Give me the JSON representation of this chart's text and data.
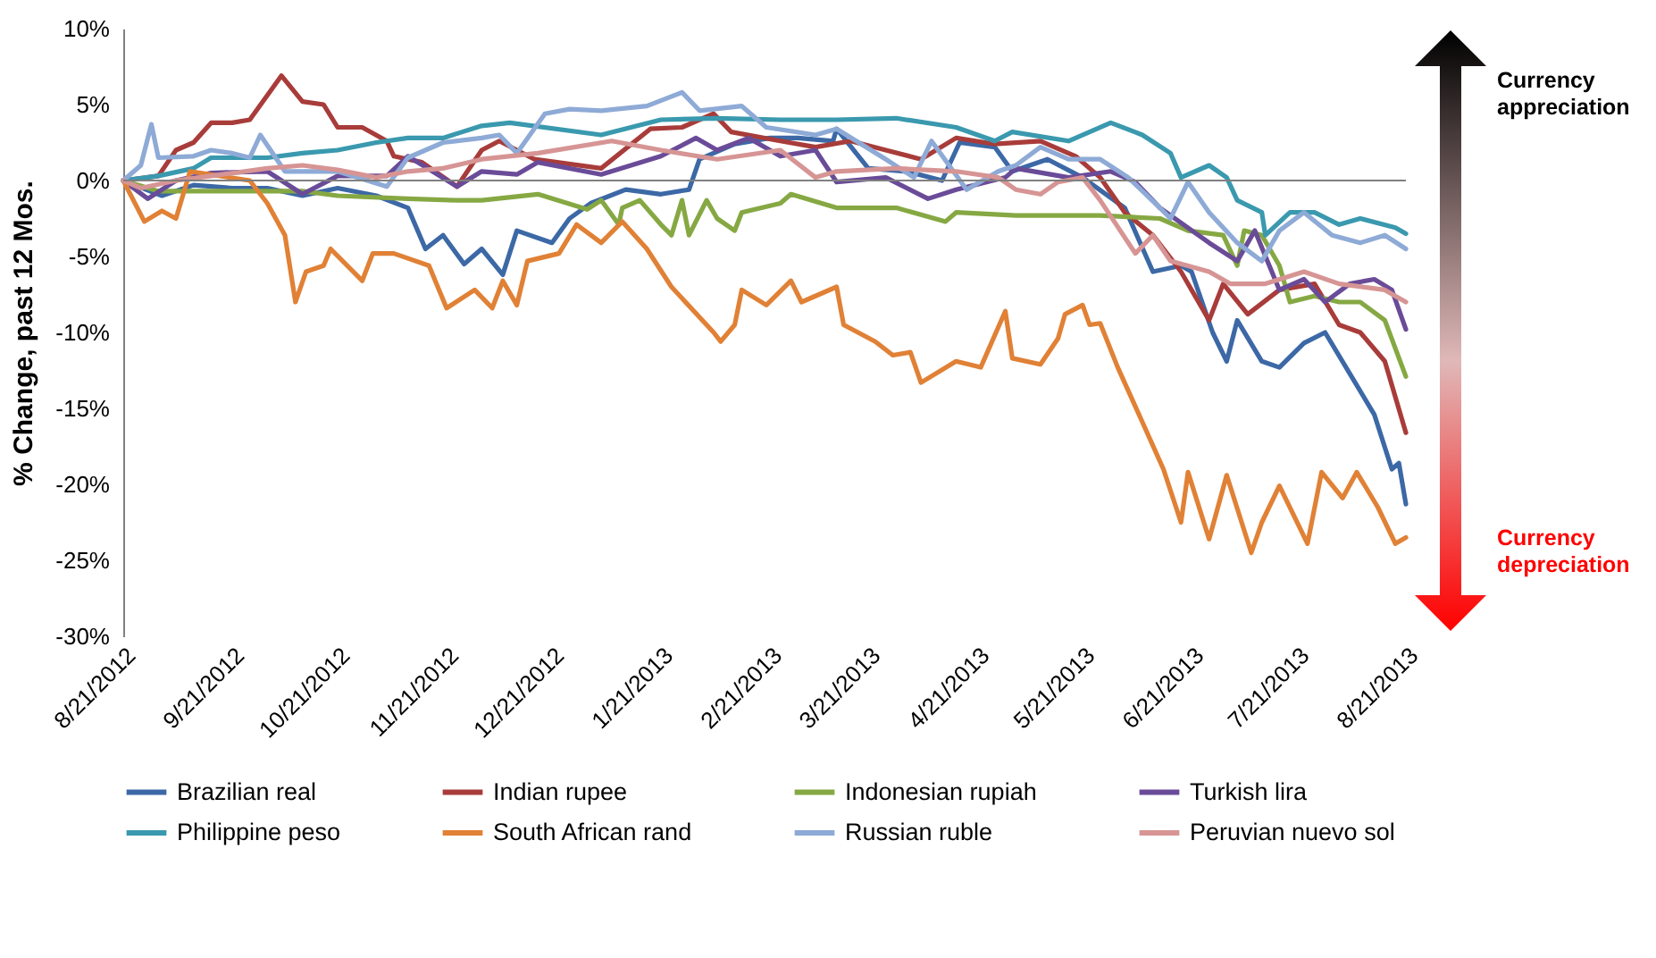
{
  "chart_data": {
    "type": "line",
    "ylabel": "% Change, past 12 Mos.",
    "legend": "bottom",
    "grid": false,
    "line_style": "solid",
    "xlim": [
      "2012-08-21",
      "2013-08-21"
    ],
    "xticks": [
      {
        "value": "2012-08-21",
        "label": "8/21/2012"
      },
      {
        "value": "2012-09-21",
        "label": "9/21/2012"
      },
      {
        "value": "2012-10-21",
        "label": "10/21/2012"
      },
      {
        "value": "2012-11-21",
        "label": "11/21/2012"
      },
      {
        "value": "2012-12-21",
        "label": "12/21/2012"
      },
      {
        "value": "2013-01-21",
        "label": "1/21/2013"
      },
      {
        "value": "2013-02-21",
        "label": "2/21/2013"
      },
      {
        "value": "2013-03-21",
        "label": "3/21/2013"
      },
      {
        "value": "2013-04-21",
        "label": "4/21/2013"
      },
      {
        "value": "2013-05-21",
        "label": "5/21/2013"
      },
      {
        "value": "2013-06-21",
        "label": "6/21/2013"
      },
      {
        "value": "2013-07-21",
        "label": "7/21/2013"
      },
      {
        "value": "2013-08-21",
        "label": "8/21/2013"
      }
    ],
    "ylim": [
      -30,
      10
    ],
    "yticks": [
      {
        "value": 10,
        "label": "10%"
      },
      {
        "value": 5,
        "label": "5%"
      },
      {
        "value": 0,
        "label": "0%"
      },
      {
        "value": -5,
        "label": "-5%"
      },
      {
        "value": -10,
        "label": "-10%"
      },
      {
        "value": -15,
        "label": "-15%"
      },
      {
        "value": -20,
        "label": "-20%"
      },
      {
        "value": -25,
        "label": "-25%"
      },
      {
        "value": -30,
        "label": "-30%"
      }
    ],
    "ref_lines": [
      {
        "axis": "y",
        "value": 0,
        "color": "#808080"
      }
    ],
    "annotations": [
      "Currency appreciation",
      "Currency depreciation"
    ],
    "series": [
      {
        "name": "Brazilian real",
        "color": "#3c68a6",
        "x": [
          "2012-08-21",
          "2012-09-01",
          "2012-09-10",
          "2012-09-21",
          "2012-10-01",
          "2012-10-11",
          "2012-10-21",
          "2012-11-01",
          "2012-11-10",
          "2012-11-15",
          "2012-11-20",
          "2012-11-26",
          "2012-12-01",
          "2012-12-07",
          "2012-12-11",
          "2012-12-21",
          "2012-12-26",
          "2013-01-01",
          "2013-01-11",
          "2013-01-21",
          "2013-01-29",
          "2013-02-01",
          "2013-02-11",
          "2013-02-21",
          "2013-03-01",
          "2013-03-11",
          "2013-03-12",
          "2013-03-21",
          "2013-04-01",
          "2013-04-11",
          "2013-04-16",
          "2013-04-26",
          "2013-05-01",
          "2013-05-11",
          "2013-05-21",
          "2013-06-02",
          "2013-06-10",
          "2013-06-18",
          "2013-06-21",
          "2013-06-27",
          "2013-07-01",
          "2013-07-04",
          "2013-07-11",
          "2013-07-16",
          "2013-07-23",
          "2013-07-29",
          "2013-08-05",
          "2013-08-12",
          "2013-08-17",
          "2013-08-19",
          "2013-08-21"
        ],
        "values": [
          0,
          -1,
          -0.3,
          -0.5,
          -0.5,
          -1,
          -0.5,
          -1,
          -1.8,
          -4.5,
          -3.6,
          -5.5,
          -4.5,
          -6.2,
          -3.3,
          -4.1,
          -2.5,
          -1.5,
          -0.6,
          -0.9,
          -0.6,
          1.4,
          2.4,
          2.8,
          2.8,
          2.6,
          3.4,
          0.8,
          0.6,
          0,
          2.5,
          2.2,
          0.6,
          1.4,
          0.2,
          -1.8,
          -6,
          -5.6,
          -6,
          -10,
          -11.9,
          -9.2,
          -11.9,
          -12.3,
          -10.7,
          -10,
          -12.7,
          -15.4,
          -19,
          -18.6,
          -21.3
        ]
      },
      {
        "name": "Indian rupee",
        "color": "#a83c3a",
        "x": [
          "2012-08-21",
          "2012-08-31",
          "2012-09-05",
          "2012-09-10",
          "2012-09-15",
          "2012-09-21",
          "2012-09-26",
          "2012-10-05",
          "2012-10-11",
          "2012-10-17",
          "2012-10-21",
          "2012-10-28",
          "2012-11-04",
          "2012-11-06",
          "2012-11-14",
          "2012-11-24",
          "2012-12-01",
          "2012-12-06",
          "2012-12-16",
          "2013-01-04",
          "2013-01-18",
          "2013-01-27",
          "2013-02-05",
          "2013-02-10",
          "2013-02-24",
          "2013-03-06",
          "2013-03-16",
          "2013-03-26",
          "2013-04-05",
          "2013-04-15",
          "2013-04-26",
          "2013-05-09",
          "2013-05-19",
          "2013-05-26",
          "2013-06-02",
          "2013-06-10",
          "2013-06-18",
          "2013-06-26",
          "2013-06-30",
          "2013-07-07",
          "2013-07-16",
          "2013-07-26",
          "2013-08-02",
          "2013-08-08",
          "2013-08-15",
          "2013-08-21"
        ],
        "values": [
          0,
          0.3,
          2,
          2.5,
          3.8,
          3.8,
          4,
          6.9,
          5.2,
          5,
          3.5,
          3.5,
          2.6,
          1.6,
          1.2,
          -0.4,
          2,
          2.6,
          1.4,
          0.8,
          3.4,
          3.5,
          4.4,
          3.2,
          2.6,
          2.2,
          2.6,
          2,
          1.4,
          2.8,
          2.4,
          2.6,
          1.6,
          0.2,
          -2.1,
          -3.6,
          -6,
          -9.2,
          -6.8,
          -8.8,
          -7.2,
          -6.8,
          -9.5,
          -10,
          -11.9,
          -16.6
        ]
      },
      {
        "name": "Indonesian rupiah",
        "color": "#86a843",
        "x": [
          "2012-08-21",
          "2012-08-31",
          "2012-09-21",
          "2012-10-11",
          "2012-10-21",
          "2012-11-10",
          "2012-11-24",
          "2012-12-01",
          "2012-12-17",
          "2012-12-31",
          "2013-01-04",
          "2013-01-09",
          "2013-01-10",
          "2013-01-15",
          "2013-01-21",
          "2013-01-24",
          "2013-01-27",
          "2013-01-29",
          "2013-02-03",
          "2013-02-06",
          "2013-02-11",
          "2013-02-13",
          "2013-02-24",
          "2013-02-27",
          "2013-03-12",
          "2013-03-29",
          "2013-04-12",
          "2013-04-15",
          "2013-05-02",
          "2013-05-26",
          "2013-06-12",
          "2013-06-20",
          "2013-06-30",
          "2013-07-04",
          "2013-07-06",
          "2013-07-11",
          "2013-07-16",
          "2013-07-19",
          "2013-07-26",
          "2013-08-02",
          "2013-08-08",
          "2013-08-15",
          "2013-08-21"
        ],
        "values": [
          0,
          -0.7,
          -0.7,
          -0.7,
          -1,
          -1.2,
          -1.3,
          -1.3,
          -0.9,
          -1.9,
          -1.3,
          -2.9,
          -1.8,
          -1.3,
          -2.9,
          -3.6,
          -1.3,
          -3.6,
          -1.3,
          -2.5,
          -3.3,
          -2.1,
          -1.5,
          -0.9,
          -1.8,
          -1.8,
          -2.7,
          -2.1,
          -2.3,
          -2.3,
          -2.5,
          -3.3,
          -3.6,
          -5.6,
          -3.3,
          -3.6,
          -5.6,
          -8,
          -7.6,
          -8,
          -8,
          -9.2,
          -12.9
        ]
      },
      {
        "name": "Turkish lira",
        "color": "#6a4b98",
        "x": [
          "2012-08-21",
          "2012-08-28",
          "2012-09-05",
          "2012-09-15",
          "2012-10-01",
          "2012-10-11",
          "2012-10-21",
          "2012-11-04",
          "2012-11-10",
          "2012-11-24",
          "2012-12-01",
          "2012-12-11",
          "2012-12-17",
          "2013-01-04",
          "2013-01-21",
          "2013-01-31",
          "2013-02-06",
          "2013-02-15",
          "2013-02-24",
          "2013-03-06",
          "2013-03-12",
          "2013-03-26",
          "2013-04-07",
          "2013-04-15",
          "2013-04-29",
          "2013-05-02",
          "2013-05-17",
          "2013-05-29",
          "2013-06-05",
          "2013-06-12",
          "2013-06-26",
          "2013-07-04",
          "2013-07-09",
          "2013-07-16",
          "2013-07-23",
          "2013-07-29",
          "2013-08-05",
          "2013-08-12",
          "2013-08-17",
          "2013-08-21"
        ],
        "values": [
          0,
          -1.2,
          0,
          0.5,
          0.6,
          -0.9,
          0.3,
          0.3,
          1.6,
          -0.4,
          0.6,
          0.4,
          1.2,
          0.4,
          1.6,
          2.8,
          2,
          2.8,
          1.6,
          2,
          -0.1,
          0.2,
          -1.2,
          -0.6,
          0.2,
          0.8,
          0.2,
          0.6,
          -0.1,
          -1.8,
          -4.1,
          -5.3,
          -3.3,
          -7.2,
          -6.5,
          -8,
          -6.8,
          -6.5,
          -7.2,
          -9.8
        ]
      },
      {
        "name": "Philippine peso",
        "color": "#3a99ae",
        "x": [
          "2012-08-21",
          "2012-08-31",
          "2012-09-10",
          "2012-09-15",
          "2012-10-01",
          "2012-10-11",
          "2012-10-21",
          "2012-11-01",
          "2012-11-10",
          "2012-11-20",
          "2012-12-01",
          "2012-12-09",
          "2013-01-04",
          "2013-01-21",
          "2013-02-06",
          "2013-02-24",
          "2013-03-12",
          "2013-03-29",
          "2013-04-15",
          "2013-04-26",
          "2013-05-01",
          "2013-05-17",
          "2013-05-29",
          "2013-06-07",
          "2013-06-15",
          "2013-06-18",
          "2013-06-26",
          "2013-07-01",
          "2013-07-04",
          "2013-07-11",
          "2013-07-12",
          "2013-07-19",
          "2013-07-26",
          "2013-08-02",
          "2013-08-08",
          "2013-08-18",
          "2013-08-21"
        ],
        "values": [
          0,
          0.3,
          0.8,
          1.5,
          1.5,
          1.8,
          2,
          2.5,
          2.8,
          2.8,
          3.6,
          3.8,
          3,
          4,
          4.1,
          4,
          4,
          4.1,
          3.5,
          2.6,
          3.2,
          2.6,
          3.8,
          3,
          1.8,
          0.2,
          1,
          0.2,
          -1.3,
          -2.1,
          -3.6,
          -2.1,
          -2.1,
          -2.9,
          -2.5,
          -3.1,
          -3.5
        ]
      },
      {
        "name": "South African rand",
        "color": "#e08136",
        "x": [
          "2012-08-21",
          "2012-08-27",
          "2012-09-01",
          "2012-09-05",
          "2012-09-09",
          "2012-09-26",
          "2012-10-01",
          "2012-10-06",
          "2012-10-09",
          "2012-10-12",
          "2012-10-17",
          "2012-10-19",
          "2012-10-28",
          "2012-10-31",
          "2012-11-06",
          "2012-11-16",
          "2012-11-21",
          "2012-11-29",
          "2012-12-04",
          "2012-12-07",
          "2012-12-11",
          "2012-12-14",
          "2012-12-23",
          "2012-12-28",
          "2013-01-04",
          "2013-01-10",
          "2013-01-17",
          "2013-01-24",
          "2013-02-05",
          "2013-02-07",
          "2013-02-11",
          "2013-02-13",
          "2013-02-20",
          "2013-02-27",
          "2013-03-02",
          "2013-03-12",
          "2013-03-14",
          "2013-03-23",
          "2013-03-28",
          "2013-04-02",
          "2013-04-05",
          "2013-04-15",
          "2013-04-22",
          "2013-04-29",
          "2013-05-01",
          "2013-05-09",
          "2013-05-14",
          "2013-05-16",
          "2013-05-21",
          "2013-05-23",
          "2013-05-26",
          "2013-05-31",
          "2013-06-07",
          "2013-06-13",
          "2013-06-18",
          "2013-06-20",
          "2013-06-26",
          "2013-07-01",
          "2013-07-08",
          "2013-07-11",
          "2013-07-16",
          "2013-07-24",
          "2013-07-28",
          "2013-08-03",
          "2013-08-07",
          "2013-08-13",
          "2013-08-18",
          "2013-08-21"
        ],
        "values": [
          0,
          -2.7,
          -2,
          -2.5,
          0.6,
          0,
          -1.5,
          -3.6,
          -8,
          -6,
          -5.6,
          -4.5,
          -6.6,
          -4.8,
          -4.8,
          -5.6,
          -8.4,
          -7.2,
          -8.4,
          -6.6,
          -8.2,
          -5.3,
          -4.8,
          -2.9,
          -4.1,
          -2.7,
          -4.5,
          -7,
          -10,
          -10.6,
          -9.5,
          -7.2,
          -8.2,
          -6.6,
          -8,
          -7,
          -9.5,
          -10.6,
          -11.5,
          -11.3,
          -13.3,
          -11.9,
          -12.3,
          -8.6,
          -11.7,
          -12.1,
          -10.4,
          -8.8,
          -8.2,
          -9.5,
          -9.4,
          -12.3,
          -15.9,
          -19,
          -22.5,
          -19.2,
          -23.6,
          -19.4,
          -24.5,
          -22.5,
          -20.1,
          -23.9,
          -19.2,
          -20.9,
          -19.2,
          -21.5,
          -23.9,
          -23.5
        ]
      },
      {
        "name": "Russian ruble",
        "color": "#8eaad6",
        "x": [
          "2012-08-21",
          "2012-08-26",
          "2012-08-29",
          "2012-08-31",
          "2012-09-10",
          "2012-09-15",
          "2012-09-21",
          "2012-09-26",
          "2012-09-29",
          "2012-10-06",
          "2012-10-11",
          "2012-10-21",
          "2012-11-04",
          "2012-11-10",
          "2012-11-20",
          "2012-12-01",
          "2012-12-06",
          "2012-12-11",
          "2012-12-19",
          "2012-12-26",
          "2013-01-04",
          "2013-01-17",
          "2013-01-27",
          "2013-02-01",
          "2013-02-13",
          "2013-02-20",
          "2013-03-06",
          "2013-03-12",
          "2013-03-26",
          "2013-04-03",
          "2013-04-08",
          "2013-04-18",
          "2013-04-27",
          "2013-05-02",
          "2013-05-09",
          "2013-05-17",
          "2013-05-26",
          "2013-06-03",
          "2013-06-12",
          "2013-06-15",
          "2013-06-20",
          "2013-06-26",
          "2013-07-04",
          "2013-07-11",
          "2013-07-16",
          "2013-07-23",
          "2013-07-31",
          "2013-08-08",
          "2013-08-15",
          "2013-08-21"
        ],
        "values": [
          0,
          1,
          3.7,
          1.5,
          1.6,
          2,
          1.8,
          1.5,
          3,
          0.6,
          0.6,
          0.6,
          -0.4,
          1.5,
          2.5,
          2.8,
          3,
          1.8,
          4.4,
          4.7,
          4.6,
          4.9,
          5.8,
          4.6,
          4.9,
          3.5,
          3,
          3.4,
          1.4,
          0.2,
          2.6,
          -0.6,
          0.6,
          1,
          2.2,
          1.4,
          1.4,
          0.2,
          -1.8,
          -2.5,
          -0.1,
          -2.1,
          -4.1,
          -5.3,
          -3.3,
          -2.1,
          -3.6,
          -4.1,
          -3.6,
          -4.5
        ]
      },
      {
        "name": "Peruvian nuevo sol",
        "color": "#d69594",
        "x": [
          "2012-08-21",
          "2012-08-26",
          "2012-09-05",
          "2012-09-15",
          "2012-10-01",
          "2012-10-11",
          "2012-10-21",
          "2012-11-01",
          "2012-11-10",
          "2012-11-20",
          "2012-12-01",
          "2012-12-17",
          "2013-01-07",
          "2013-01-21",
          "2013-02-06",
          "2013-02-24",
          "2013-03-06",
          "2013-03-12",
          "2013-03-29",
          "2013-04-15",
          "2013-04-27",
          "2013-05-02",
          "2013-05-09",
          "2013-05-14",
          "2013-05-21",
          "2013-05-26",
          "2013-06-05",
          "2013-06-10",
          "2013-06-15",
          "2013-06-26",
          "2013-07-02",
          "2013-07-12",
          "2013-07-23",
          "2013-08-02",
          "2013-08-15",
          "2013-08-21"
        ],
        "values": [
          0,
          -0.5,
          0,
          0.3,
          0.8,
          1,
          0.7,
          0.2,
          0.6,
          0.8,
          1.4,
          1.8,
          2.6,
          2,
          1.4,
          2,
          0.2,
          0.6,
          0.8,
          0.6,
          0.2,
          -0.6,
          -0.9,
          -0.1,
          0.2,
          -1.3,
          -4.8,
          -3.6,
          -5.3,
          -6,
          -6.8,
          -6.8,
          -6,
          -6.8,
          -7.2,
          -8
        ]
      }
    ]
  }
}
